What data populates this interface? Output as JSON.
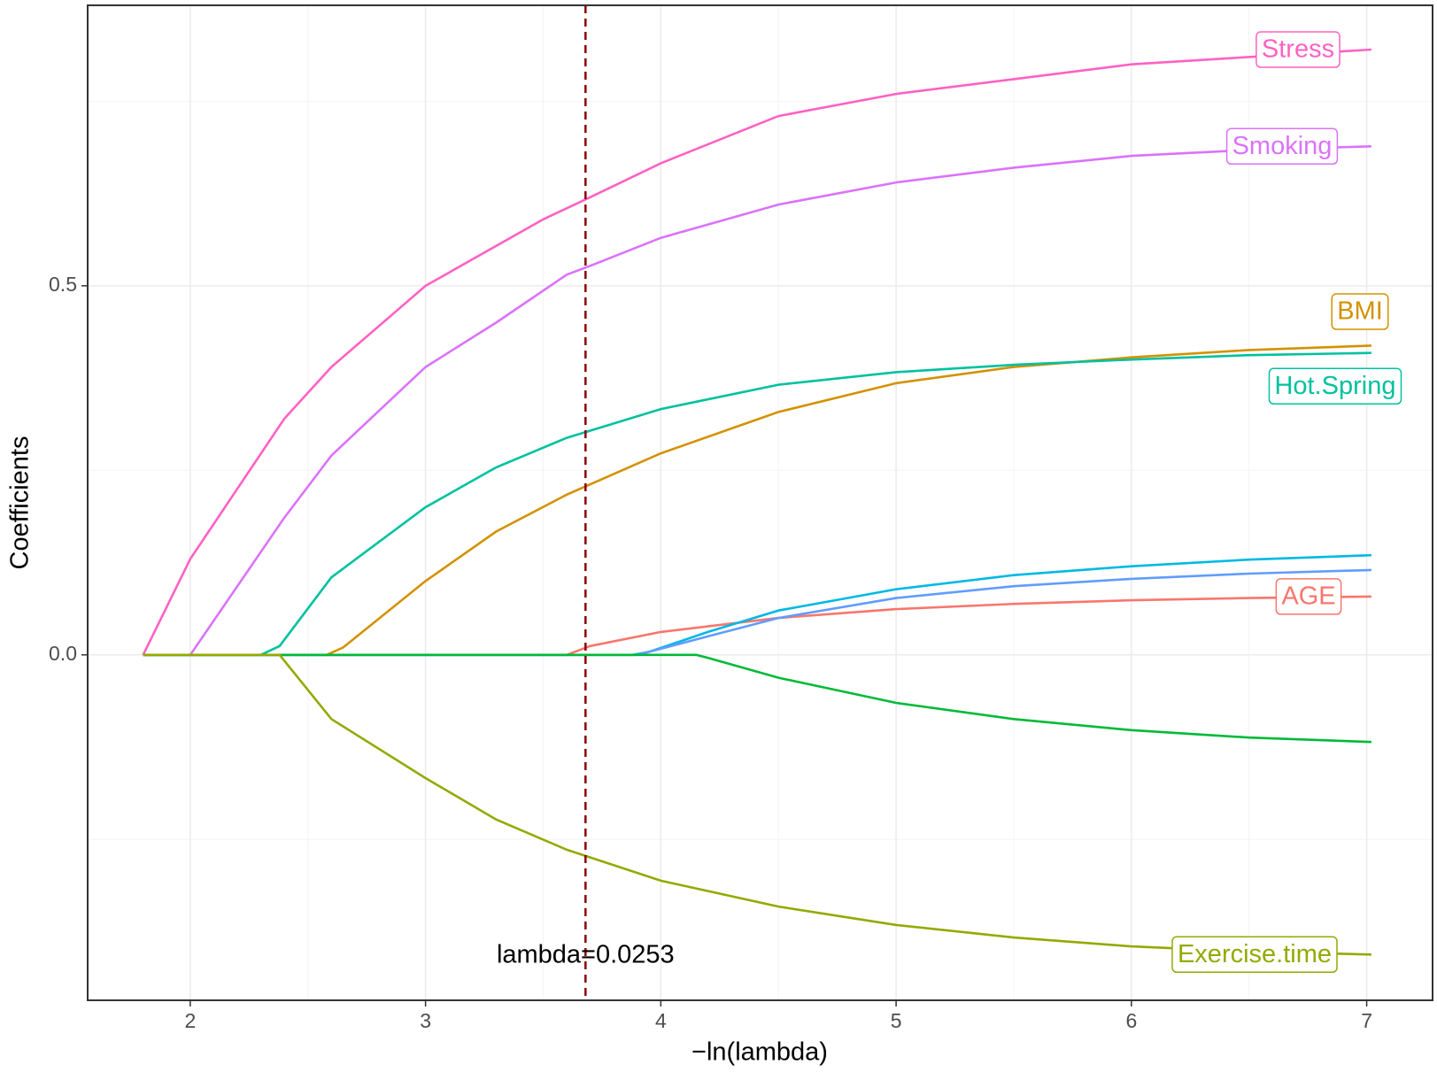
{
  "chart_data": {
    "type": "line",
    "x_label": "−ln(lambda)",
    "y_label": "Coefficients",
    "xlim": [
      1.564,
      7.28
    ],
    "ylim": [
      -0.468,
      0.88
    ],
    "xticks": [
      2,
      3,
      4,
      5,
      6,
      7
    ],
    "yticks": [
      {
        "value": 0,
        "label": "0.0"
      },
      0.5
    ],
    "xminorticks": [
      2.5,
      3.5,
      4.5,
      5.5,
      6.5
    ],
    "yminorticks": [
      -0.25,
      0.25,
      0.75
    ],
    "grid": true,
    "vline": {
      "x": 3.68,
      "color": "#8B0000",
      "label": "lambda=0.0253"
    },
    "series": [
      {
        "name": "Stress",
        "color": "#FF61C3",
        "x": [
          1.8,
          2.0,
          2.4,
          2.6,
          3.0,
          3.5,
          3.7,
          4.0,
          4.5,
          5.0,
          5.5,
          6.0,
          6.5,
          7.02
        ],
        "values": [
          0,
          0.13,
          0.32,
          0.39,
          0.5,
          0.59,
          0.62,
          0.666,
          0.73,
          0.76,
          0.78,
          0.8,
          0.81,
          0.82
        ]
      },
      {
        "name": "Smoking",
        "color": "#DB72FB",
        "x": [
          1.8,
          2.0,
          2.4,
          2.6,
          3.0,
          3.3,
          3.6,
          3.7,
          4.0,
          4.5,
          5.0,
          5.5,
          6.0,
          6.5,
          7.02
        ],
        "values": [
          0,
          0,
          0.186,
          0.27,
          0.39,
          0.45,
          0.515,
          0.527,
          0.565,
          0.61,
          0.64,
          0.66,
          0.676,
          0.684,
          0.689
        ]
      },
      {
        "name": "BMI",
        "color": "#D39200",
        "x": [
          1.8,
          2.58,
          2.65,
          3.0,
          3.3,
          3.6,
          4.0,
          4.5,
          5.0,
          5.5,
          6.0,
          6.5,
          7.02
        ],
        "values": [
          0,
          0,
          0.01,
          0.1,
          0.167,
          0.217,
          0.273,
          0.329,
          0.368,
          0.39,
          0.403,
          0.413,
          0.419
        ]
      },
      {
        "name": "Hot.Spring",
        "color": "#00C19F",
        "x": [
          1.8,
          2.3,
          2.38,
          2.6,
          3.0,
          3.3,
          3.6,
          4.0,
          4.5,
          5.0,
          5.5,
          6.0,
          6.5,
          7.02
        ],
        "values": [
          0,
          0,
          0.012,
          0.105,
          0.2,
          0.254,
          0.294,
          0.333,
          0.366,
          0.383,
          0.393,
          0.4,
          0.406,
          0.409
        ]
      },
      {
        "name": "AGE",
        "color": "#F8766D",
        "x": [
          1.8,
          3.6,
          3.7,
          4.0,
          4.5,
          5.0,
          5.5,
          6.0,
          6.5,
          7.02
        ],
        "values": [
          0,
          0,
          0.012,
          0.031,
          0.05,
          0.062,
          0.069,
          0.074,
          0.077,
          0.079
        ]
      },
      {
        "color": "#00B9E3",
        "x": [
          1.8,
          3.88,
          3.95,
          4.2,
          4.5,
          5.0,
          5.5,
          6.0,
          6.5,
          7.02
        ],
        "values": [
          0,
          0,
          0.004,
          0.031,
          0.06,
          0.089,
          0.108,
          0.12,
          0.129,
          0.135
        ]
      },
      {
        "color": "#619CFF",
        "x": [
          1.8,
          3.9,
          4.2,
          4.5,
          5.0,
          5.5,
          6.0,
          6.5,
          7.02
        ],
        "values": [
          0,
          0,
          0.025,
          0.05,
          0.077,
          0.093,
          0.103,
          0.11,
          0.115
        ]
      },
      {
        "color": "#00BA38",
        "x": [
          1.8,
          4.15,
          4.2,
          4.5,
          5.0,
          5.5,
          6.0,
          6.5,
          7.02
        ],
        "values": [
          0,
          0,
          -0.004,
          -0.031,
          -0.065,
          -0.087,
          -0.102,
          -0.112,
          -0.118
        ]
      },
      {
        "name": "Exercise.time",
        "color": "#93AA00",
        "x": [
          1.8,
          2.38,
          2.6,
          3.0,
          3.3,
          3.6,
          4.0,
          4.5,
          5.0,
          5.5,
          6.0,
          6.5,
          7.02
        ],
        "values": [
          0,
          0,
          -0.087,
          -0.167,
          -0.223,
          -0.264,
          -0.306,
          -0.341,
          -0.366,
          -0.383,
          -0.395,
          -0.402,
          -0.406
        ]
      }
    ]
  }
}
